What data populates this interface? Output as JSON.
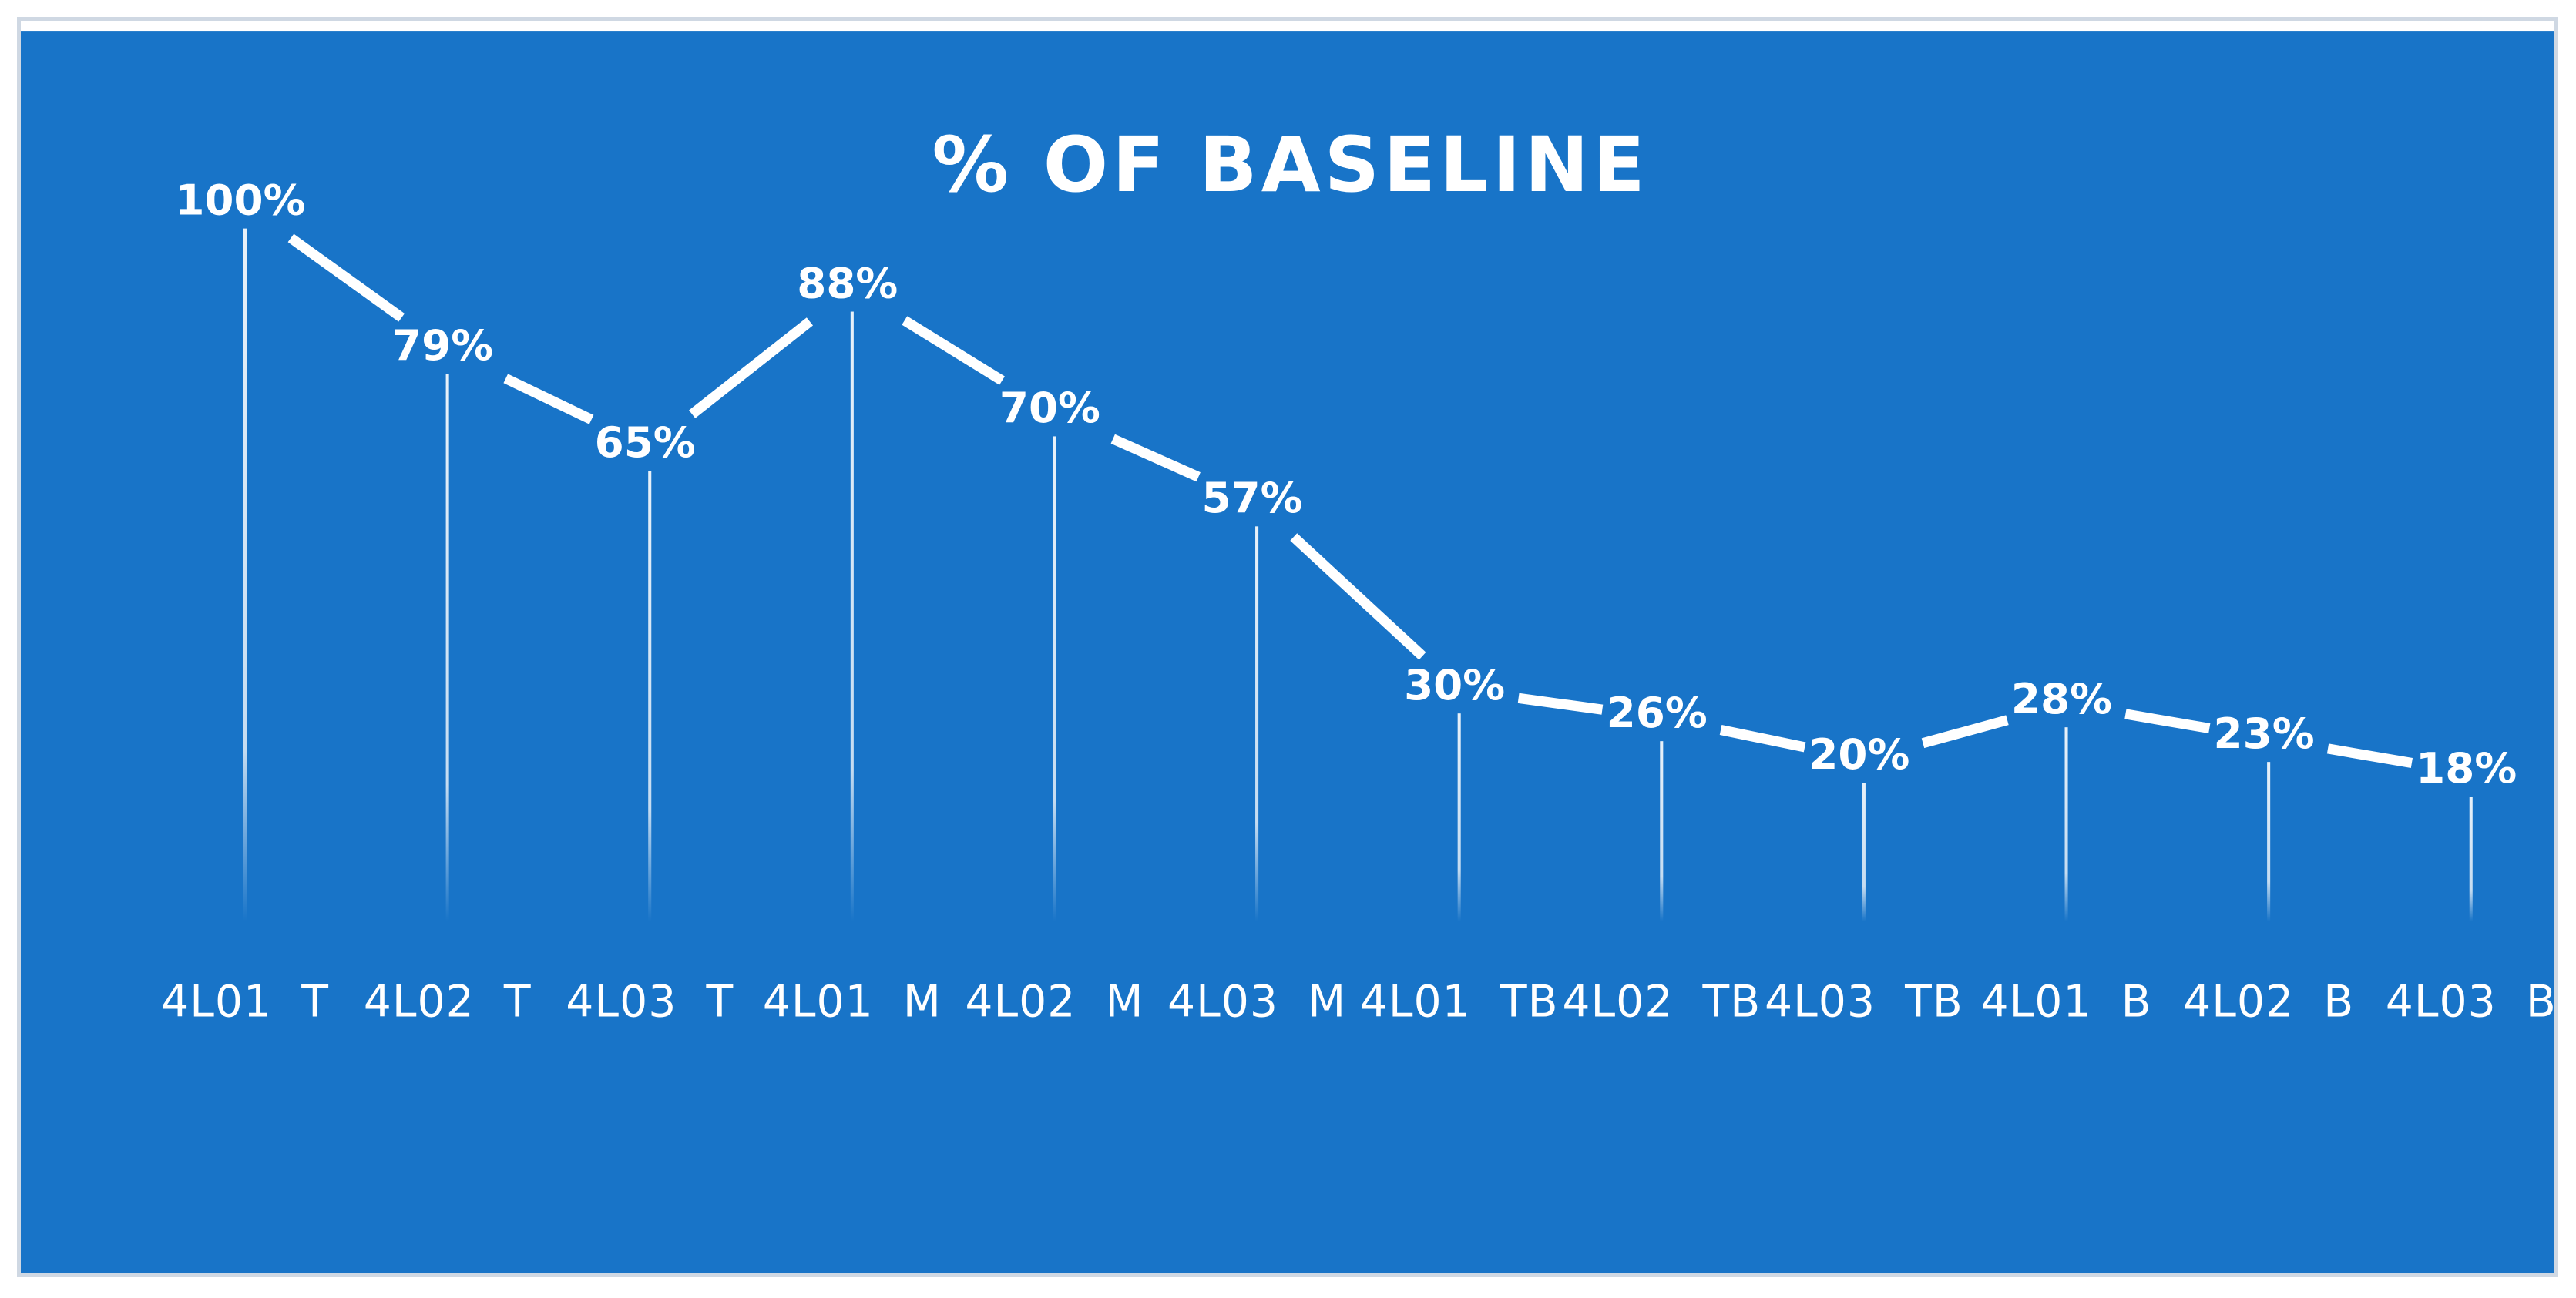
{
  "chart_data": {
    "type": "line",
    "title": "% OF BASELINE",
    "xlabel": "",
    "ylabel": "",
    "categories": [
      "4L01  T",
      "4L02  T",
      "4L03  T",
      "4L01  M",
      "4L02  M",
      "4L03  M",
      "4L01  TB",
      "4L02  TB",
      "4L03  TB",
      "4L01  B",
      "4L02  B",
      "4L03  B"
    ],
    "values": [
      100,
      79,
      65,
      88,
      70,
      57,
      30,
      26,
      20,
      28,
      23,
      18
    ],
    "value_labels": [
      "100%",
      "79%",
      "65%",
      "88%",
      "70%",
      "57%",
      "30%",
      "26%",
      "20%",
      "28%",
      "23%",
      "18%"
    ],
    "ylim": [
      0,
      100
    ],
    "grid": false,
    "legend": "none",
    "drop_lines": true,
    "data_labels": true
  },
  "colors": {
    "background": "#1874c8",
    "line": "#ffffff",
    "text": "#ffffff",
    "border": "#cfd8e3"
  }
}
